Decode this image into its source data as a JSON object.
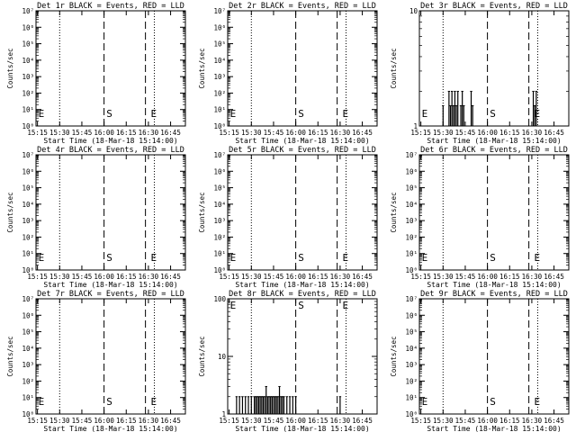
{
  "chart_data": [
    {
      "type": "line",
      "title": "Det 1r BLACK = Events, RED = LLD",
      "xlabel": "Start Time (18-Mar-18 15:14:00)",
      "ylabel": "Counts/sec",
      "scale": "log",
      "ylim": [
        1,
        10000000
      ],
      "y_tick_labels": [
        "10⁰",
        "10¹",
        "10²",
        "10³",
        "10⁴",
        "10⁵",
        "10⁶",
        "10⁷"
      ],
      "xlim": [
        "15:14",
        "16:55"
      ],
      "x_tick_labels": [
        "15:15",
        "15:30",
        "15:45",
        "16:00",
        "16:15",
        "16:30",
        "16:45"
      ],
      "dotted_lines": [
        "15:30",
        "16:34"
      ],
      "dashed_lines": [
        "16:00",
        "16:28"
      ],
      "markers": [
        {
          "text": "E",
          "x": "15:15"
        },
        {
          "text": "S",
          "x": "16:01"
        },
        {
          "text": "E",
          "x": "16:31"
        }
      ],
      "series": []
    },
    {
      "type": "line",
      "title": "Det 2r BLACK = Events, RED = LLD",
      "xlabel": "Start Time (18-Mar-18 15:14:00)",
      "ylabel": "Counts/sec",
      "scale": "log",
      "ylim": [
        1,
        10000000
      ],
      "y_tick_labels": [
        "10⁰",
        "10¹",
        "10²",
        "10³",
        "10⁴",
        "10⁵",
        "10⁶",
        "10⁷"
      ],
      "xlim": [
        "15:14",
        "16:55"
      ],
      "x_tick_labels": [
        "15:15",
        "15:30",
        "15:45",
        "16:00",
        "16:15",
        "16:30",
        "16:45"
      ],
      "dotted_lines": [
        "15:30",
        "16:34"
      ],
      "dashed_lines": [
        "16:00",
        "16:28"
      ],
      "markers": [
        {
          "text": "E",
          "x": "15:15"
        },
        {
          "text": "S",
          "x": "16:01"
        },
        {
          "text": "E",
          "x": "16:31"
        }
      ],
      "series": []
    },
    {
      "type": "line",
      "title": "Det 3r BLACK = Events, RED = LLD",
      "xlabel": "Start Time (18-Mar-18 15:14:00)",
      "ylabel": "Counts/sec",
      "scale": "log",
      "ylim": [
        1,
        10
      ],
      "y_tick_labels": [
        "1",
        "10"
      ],
      "xlim": [
        "15:14",
        "16:55"
      ],
      "x_tick_labels": [
        "15:15",
        "15:30",
        "15:45",
        "16:00",
        "16:15",
        "16:30",
        "16:45"
      ],
      "dotted_lines": [
        "15:30",
        "16:34"
      ],
      "dashed_lines": [
        "16:00",
        "16:28"
      ],
      "markers": [
        {
          "text": "E",
          "x": "15:15"
        },
        {
          "text": "S",
          "x": "16:01"
        },
        {
          "text": "E",
          "x": "16:31"
        }
      ],
      "series": [
        {
          "color": "#000000",
          "bars": [
            {
              "x": "15:30",
              "y": 1.5
            },
            {
              "x": "15:34",
              "y": 2
            },
            {
              "x": "15:35",
              "y": 1.5
            },
            {
              "x": "15:36",
              "y": 2
            },
            {
              "x": "15:37",
              "y": 1.5
            },
            {
              "x": "15:38",
              "y": 2
            },
            {
              "x": "15:39",
              "y": 1.5
            },
            {
              "x": "15:40",
              "y": 2
            },
            {
              "x": "15:42",
              "y": 1.5
            },
            {
              "x": "15:43",
              "y": 2
            },
            {
              "x": "15:44",
              "y": 1.5
            },
            {
              "x": "15:49",
              "y": 2
            },
            {
              "x": "15:50",
              "y": 1.5
            },
            {
              "x": "16:31",
              "y": 2
            },
            {
              "x": "16:32",
              "y": 1.5
            },
            {
              "x": "16:33",
              "y": 2
            }
          ]
        }
      ]
    },
    {
      "type": "line",
      "title": "Det 4r BLACK = Events, RED = LLD",
      "xlabel": "Start Time (18-Mar-18 15:14:00)",
      "ylabel": "Counts/sec",
      "scale": "log",
      "ylim": [
        1,
        10000000
      ],
      "y_tick_labels": [
        "10⁰",
        "10¹",
        "10²",
        "10³",
        "10⁴",
        "10⁵",
        "10⁶",
        "10⁷"
      ],
      "xlim": [
        "15:14",
        "16:55"
      ],
      "x_tick_labels": [
        "15:15",
        "15:30",
        "15:45",
        "16:00",
        "16:15",
        "16:30",
        "16:45"
      ],
      "dotted_lines": [
        "15:30",
        "16:34"
      ],
      "dashed_lines": [
        "16:00",
        "16:28"
      ],
      "markers": [
        {
          "text": "E",
          "x": "15:15"
        },
        {
          "text": "S",
          "x": "16:01"
        },
        {
          "text": "E",
          "x": "16:31"
        }
      ],
      "series": []
    },
    {
      "type": "line",
      "title": "Det 5r BLACK = Events, RED = LLD",
      "xlabel": "Start Time (18-Mar-18 15:14:00)",
      "ylabel": "Counts/sec",
      "scale": "log",
      "ylim": [
        1,
        10000000
      ],
      "y_tick_labels": [
        "10⁰",
        "10¹",
        "10²",
        "10³",
        "10⁴",
        "10⁵",
        "10⁶",
        "10⁷"
      ],
      "xlim": [
        "15:14",
        "16:55"
      ],
      "x_tick_labels": [
        "15:15",
        "15:30",
        "15:45",
        "16:00",
        "16:15",
        "16:30",
        "16:45"
      ],
      "dotted_lines": [
        "15:30",
        "16:34"
      ],
      "dashed_lines": [
        "16:00",
        "16:28"
      ],
      "markers": [
        {
          "text": "E",
          "x": "15:15"
        },
        {
          "text": "S",
          "x": "16:01"
        },
        {
          "text": "E",
          "x": "16:31"
        }
      ],
      "series": []
    },
    {
      "type": "line",
      "title": "Det 6r BLACK = Events, RED = LLD",
      "xlabel": "Start Time (18-Mar-18 15:14:00)",
      "ylabel": "Counts/sec",
      "scale": "log",
      "ylim": [
        1,
        10000000
      ],
      "y_tick_labels": [
        "10⁰",
        "10¹",
        "10²",
        "10³",
        "10⁴",
        "10⁵",
        "10⁶",
        "10⁷"
      ],
      "xlim": [
        "15:14",
        "16:55"
      ],
      "x_tick_labels": [
        "15:15",
        "15:30",
        "15:45",
        "16:00",
        "16:15",
        "16:30",
        "16:45"
      ],
      "dotted_lines": [
        "15:30",
        "16:34"
      ],
      "dashed_lines": [
        "16:00",
        "16:28"
      ],
      "markers": [
        {
          "text": "E",
          "x": "15:15"
        },
        {
          "text": "S",
          "x": "16:01"
        },
        {
          "text": "E",
          "x": "16:31"
        }
      ],
      "series": []
    },
    {
      "type": "line",
      "title": "Det 7r BLACK = Events, RED = LLD",
      "xlabel": "Start Time (18-Mar-18 15:14:00)",
      "ylabel": "Counts/sec",
      "scale": "log",
      "ylim": [
        1,
        10000000
      ],
      "y_tick_labels": [
        "10⁰",
        "10¹",
        "10²",
        "10³",
        "10⁴",
        "10⁵",
        "10⁶",
        "10⁷"
      ],
      "xlim": [
        "15:14",
        "16:55"
      ],
      "x_tick_labels": [
        "15:15",
        "15:30",
        "15:45",
        "16:00",
        "16:15",
        "16:30",
        "16:45"
      ],
      "dotted_lines": [
        "15:30",
        "16:34"
      ],
      "dashed_lines": [
        "16:00",
        "16:28"
      ],
      "markers": [
        {
          "text": "E",
          "x": "15:15"
        },
        {
          "text": "S",
          "x": "16:01"
        },
        {
          "text": "E",
          "x": "16:31"
        }
      ],
      "series": []
    },
    {
      "type": "line",
      "title": "Det 8r BLACK = Events, RED = LLD",
      "xlabel": "Start Time (18-Mar-18 15:14:00)",
      "ylabel": "Counts/sec",
      "scale": "log",
      "ylim": [
        1,
        100
      ],
      "y_tick_labels": [
        "1",
        "10",
        "100"
      ],
      "xlim": [
        "15:14",
        "16:55"
      ],
      "x_tick_labels": [
        "15:15",
        "15:30",
        "15:45",
        "16:00",
        "16:15",
        "16:30",
        "16:45"
      ],
      "dotted_lines": [
        "15:30",
        "16:34"
      ],
      "dashed_lines": [
        "16:00",
        "16:28"
      ],
      "markers": [
        {
          "text": "E",
          "x": "15:15"
        },
        {
          "text": "S",
          "x": "16:01"
        },
        {
          "text": "E",
          "x": "16:31"
        }
      ],
      "series": [
        {
          "color": "#000000",
          "bars": [
            {
              "x": "15:20",
              "y": 2
            },
            {
              "x": "15:22",
              "y": 2
            },
            {
              "x": "15:24",
              "y": 2
            },
            {
              "x": "15:26",
              "y": 2
            },
            {
              "x": "15:28",
              "y": 2
            },
            {
              "x": "15:30",
              "y": 2
            },
            {
              "x": "15:32",
              "y": 2
            },
            {
              "x": "15:33",
              "y": 2
            },
            {
              "x": "15:34",
              "y": 2
            },
            {
              "x": "15:35",
              "y": 2
            },
            {
              "x": "15:36",
              "y": 2
            },
            {
              "x": "15:37",
              "y": 2
            },
            {
              "x": "15:38",
              "y": 2
            },
            {
              "x": "15:39",
              "y": 2
            },
            {
              "x": "15:40",
              "y": 3
            },
            {
              "x": "15:41",
              "y": 2
            },
            {
              "x": "15:42",
              "y": 2
            },
            {
              "x": "15:43",
              "y": 2
            },
            {
              "x": "15:44",
              "y": 2
            },
            {
              "x": "15:45",
              "y": 2
            },
            {
              "x": "15:46",
              "y": 2
            },
            {
              "x": "15:47",
              "y": 2
            },
            {
              "x": "15:48",
              "y": 2
            },
            {
              "x": "15:49",
              "y": 3
            },
            {
              "x": "15:50",
              "y": 2
            },
            {
              "x": "15:51",
              "y": 2
            },
            {
              "x": "15:52",
              "y": 2
            },
            {
              "x": "15:54",
              "y": 2
            },
            {
              "x": "15:56",
              "y": 2
            },
            {
              "x": "15:58",
              "y": 2
            },
            {
              "x": "16:00",
              "y": 2
            },
            {
              "x": "16:30",
              "y": 2
            }
          ]
        }
      ]
    },
    {
      "type": "line",
      "title": "Det 9r BLACK = Events, RED = LLD",
      "xlabel": "Start Time (18-Mar-18 15:14:00)",
      "ylabel": "Counts/sec",
      "scale": "log",
      "ylim": [
        1,
        10000000
      ],
      "y_tick_labels": [
        "10⁰",
        "10¹",
        "10²",
        "10³",
        "10⁴",
        "10⁵",
        "10⁶",
        "10⁷"
      ],
      "xlim": [
        "15:14",
        "16:55"
      ],
      "x_tick_labels": [
        "15:15",
        "15:30",
        "15:45",
        "16:00",
        "16:15",
        "16:30",
        "16:45"
      ],
      "dotted_lines": [
        "15:30",
        "16:34"
      ],
      "dashed_lines": [
        "16:00",
        "16:28"
      ],
      "markers": [
        {
          "text": "E",
          "x": "15:15"
        },
        {
          "text": "S",
          "x": "16:01"
        },
        {
          "text": "E",
          "x": "16:31"
        }
      ],
      "series": []
    }
  ]
}
